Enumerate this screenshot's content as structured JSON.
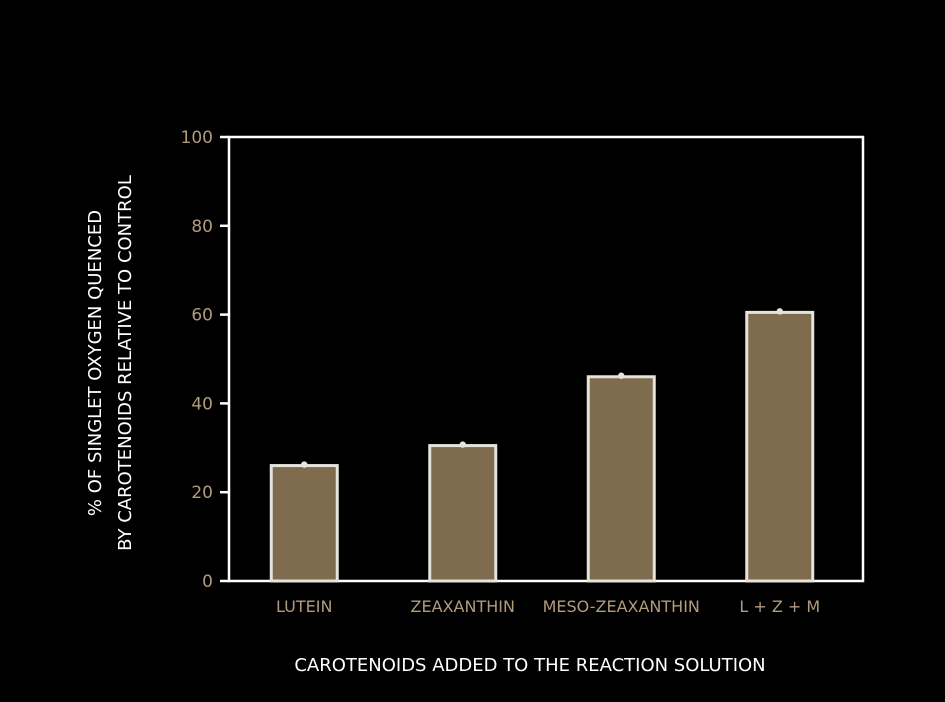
{
  "colors": {
    "background": "#000000",
    "frame": "#ffffff",
    "bar_fill": "#7f6c4f",
    "bar_stroke": "#e6e2dc",
    "tick_label": "#b19b7c",
    "axis_title": "#ffffff",
    "point": "#e6e2dc"
  },
  "chart_data": {
    "type": "bar",
    "categories": [
      "LUTEIN",
      "ZEAXANTHIN",
      "MESO-ZEAXANTHIN",
      "L + Z + M"
    ],
    "values": [
      26,
      30.5,
      46,
      60.5
    ],
    "xlabel": "CAROTENOIDS ADDED TO THE REACTION SOLUTION",
    "ylabel_lines": [
      "% OF SINGLET OXYGEN QUENCED",
      "BY CAROTENOIDS RELATIVE TO CONTROL"
    ],
    "ylim": [
      0,
      100
    ],
    "yticks": [
      0,
      20,
      40,
      60,
      80,
      100
    ],
    "grid": false,
    "legend": "none"
  }
}
